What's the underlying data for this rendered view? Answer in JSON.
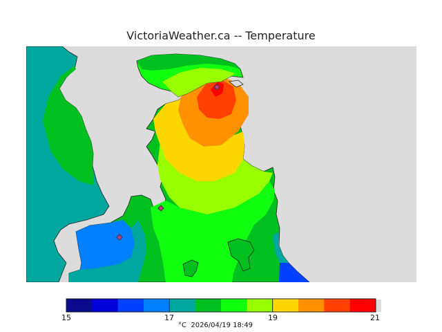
{
  "title": "VictoriaWeather.ca -- Temperature",
  "map": {
    "type": "temperature-contour-map",
    "background_color": "#dcdcdc",
    "station_markers": [
      "station-marker",
      "station-marker",
      "station-marker"
    ]
  },
  "legend": {
    "min": 15,
    "max": 21,
    "colors": [
      "#0a0a8c",
      "#0000d8",
      "#0040ff",
      "#0080ff",
      "#00a79e",
      "#00c020",
      "#10ff10",
      "#98ff00",
      "#ffd700",
      "#ff9000",
      "#ff4000",
      "#ff0000"
    ],
    "tick_labels": [
      "15",
      "17",
      "19",
      "21"
    ],
    "unit": "°C",
    "timestamp": "2026/04/19 18:49"
  }
}
